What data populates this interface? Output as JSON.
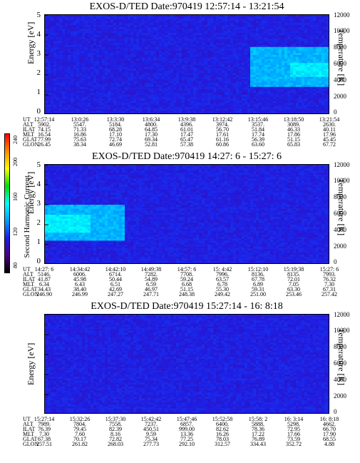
{
  "colorbar": {
    "label": "Second Harmonic Current",
    "ticks": [
      "80",
      "120",
      "160",
      "200",
      "240"
    ],
    "colors": [
      "#000000",
      "#4b0082",
      "#1e1ee6",
      "#00a0ff",
      "#00ffff",
      "#00e000",
      "#ffff00",
      "#ff8c00",
      "#ff0000"
    ]
  },
  "chart_data": [
    {
      "type": "heatmap",
      "title": "EXOS-D/TED   Date:970419   12:57:14 - 13:21:54",
      "ylabel": "Energy [eV]",
      "y2label": "Temperature [K]",
      "ylim": [
        0,
        5
      ],
      "y2lim": [
        0,
        12000
      ],
      "yticks": [
        "0",
        "1",
        "2",
        "3",
        "4",
        "5"
      ],
      "y2ticks": [
        "0",
        "2000",
        "4000",
        "6000",
        "8000",
        "10000",
        "12000"
      ],
      "background_level": 110,
      "features": [
        {
          "x_start": 0.72,
          "x_end": 1.0,
          "y_low": 1.4,
          "y_high": 3.4,
          "level": 150
        },
        {
          "x_start": 0.86,
          "x_end": 1.0,
          "y_low": 1.9,
          "y_high": 2.6,
          "level": 165
        }
      ],
      "table": {
        "keys": [
          "UT",
          "ALT",
          "ILAT",
          "MLT",
          "GLAT",
          "GLON"
        ],
        "columns": [
          [
            "12:57:14",
            "5902.",
            "74.15",
            "16.54",
            "77.99",
            "26.45"
          ],
          [
            "13:0:26",
            "5547.",
            "71.33",
            "16.86",
            "75.63",
            "38.34"
          ],
          [
            "13:3:30",
            "5184.",
            "68.28",
            "17.10",
            "72.74",
            "46.69"
          ],
          [
            "13:6:34",
            "4800.",
            "64.85",
            "17.30",
            "69.34",
            "52.81"
          ],
          [
            "13:9:38",
            "4396.",
            "61.01",
            "17.47",
            "65.47",
            "57.38"
          ],
          [
            "13:12:42",
            "3974.",
            "56.70",
            "17.61",
            "61.16",
            "60.86"
          ],
          [
            "13:15:46",
            "3537.",
            "51.84",
            "17.74",
            "56.39",
            "63.60"
          ],
          [
            "13:18:50",
            "3089.",
            "46.33",
            "17.86",
            "51.15",
            "65.83"
          ],
          [
            "13:21:54",
            "2630.",
            "40.11",
            "17.96",
            "45.45",
            "67.72"
          ]
        ]
      }
    },
    {
      "type": "heatmap",
      "title": "EXOS-D/TED   Date:970419  14:27: 6 - 15:27: 6",
      "ylabel": "Energy [eV]",
      "y2label": "Temperature [K]",
      "ylim": [
        0,
        5
      ],
      "y2lim": [
        0,
        12000
      ],
      "yticks": [
        "0",
        "1",
        "2",
        "3",
        "4",
        "5"
      ],
      "y2ticks": [
        "0",
        "2000",
        "4000",
        "6000",
        "8000",
        "10000",
        "12000"
      ],
      "background_level": 110,
      "features": [
        {
          "x_start": 0.0,
          "x_end": 0.28,
          "y_low": 1.2,
          "y_high": 3.0,
          "level": 150
        },
        {
          "x_start": 0.0,
          "x_end": 0.16,
          "y_low": 1.6,
          "y_high": 2.5,
          "level": 165
        }
      ],
      "table": {
        "keys": [
          "UT",
          "ALT",
          "ILAT",
          "MLT",
          "GLAT",
          "GLON"
        ],
        "columns": [
          [
            "14:27: 6",
            "5146.",
            "41.87",
            "6.34",
            "34.43",
            "246.90"
          ],
          [
            "14:34:42",
            "6006.",
            "45.98",
            "6.43",
            "38.40",
            "246.99"
          ],
          [
            "14:42:10",
            "6714.",
            "50.44",
            "6.51",
            "42.69",
            "247.27"
          ],
          [
            "14:49:38",
            "7282.",
            "54.89",
            "6.59",
            "46.97",
            "247.71"
          ],
          [
            "14:57: 6",
            "7708.",
            "59.24",
            "6.68",
            "51.15",
            "248.38"
          ],
          [
            "15: 4:42",
            "7996.",
            "63.57",
            "6.78",
            "55.30",
            "249.42"
          ],
          [
            "15:12:10",
            "8136.",
            "67.78",
            "6.89",
            "59.31",
            "251.00"
          ],
          [
            "15:19:38",
            "8135.",
            "72.01",
            "7.05",
            "63.30",
            "253.46"
          ],
          [
            "15:27: 6",
            "7993.",
            "76.32",
            "7.30",
            "67.31",
            "257.42"
          ]
        ]
      }
    },
    {
      "type": "heatmap",
      "title": "EXOS-D/TED   Date:970419   15:27:14 - 16: 8:18",
      "ylabel": "Energy [eV]",
      "y2label": "Temperature [K]",
      "ylim": [
        0,
        5
      ],
      "y2lim": [
        0,
        12000
      ],
      "yticks": [
        "0",
        "1",
        "2",
        "3",
        "4",
        "5"
      ],
      "y2ticks": [
        "0",
        "2000",
        "4000",
        "6000",
        "8000",
        "10000",
        "12000"
      ],
      "background_level": 110,
      "features": [],
      "table": {
        "keys": [
          "UT",
          "ALT",
          "ILAT",
          "MLT",
          "GLAT",
          "GLON"
        ],
        "columns": [
          [
            "15:27:14",
            "7989.",
            "76.39",
            "7.30",
            "67.38",
            "257.51"
          ],
          [
            "15:32:26",
            "7804.",
            "79.45",
            "7.60",
            "70.17",
            "261.82"
          ],
          [
            "15:37:30",
            "7558.",
            "82.39",
            "8.16",
            "72.82",
            "268.03"
          ],
          [
            "15:42:42",
            "7237.",
            "450.51",
            "9.59",
            "75.34",
            "277.73"
          ],
          [
            "15:47:46",
            "6857.",
            "999.00",
            "13.36",
            "77.25",
            "292.10"
          ],
          [
            "15:52:58",
            "6400.",
            "82.62",
            "16.26",
            "78.03",
            "312.57"
          ],
          [
            "15:58: 2",
            "5888.",
            "78.36",
            "17.22",
            "76.89",
            "334.43"
          ],
          [
            "16: 3:14",
            "5298.",
            "72.95",
            "17.66",
            "73.59",
            "352.72"
          ],
          [
            "16: 8:18",
            "4662.",
            "66.70",
            "17.90",
            "68.55",
            "4.88"
          ]
        ]
      }
    }
  ]
}
